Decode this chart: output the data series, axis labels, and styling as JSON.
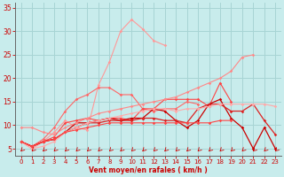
{
  "xlabel": "Vent moyen/en rafales ( km/h )",
  "x": [
    0,
    1,
    2,
    3,
    4,
    5,
    6,
    7,
    8,
    9,
    10,
    11,
    12,
    13,
    14,
    15,
    16,
    17,
    18,
    19,
    20,
    21,
    22,
    23
  ],
  "series": [
    {
      "color": "#ff9999",
      "lw": 0.8,
      "values": [
        6.5,
        5.0,
        6.5,
        8.5,
        11.0,
        9.5,
        9.0,
        18.5,
        23.5,
        30.0,
        32.5,
        30.5,
        28.0,
        27.0,
        null,
        null,
        null,
        null,
        null,
        null,
        null,
        null,
        null,
        null
      ]
    },
    {
      "color": "#ff6666",
      "lw": 0.8,
      "values": [
        6.5,
        5.5,
        7.0,
        9.5,
        13.0,
        15.5,
        16.5,
        18.0,
        18.0,
        16.5,
        16.5,
        13.5,
        13.0,
        13.5,
        13.5,
        15.0,
        14.5,
        null,
        null,
        null,
        null,
        null,
        null,
        null
      ]
    },
    {
      "color": "#ff4444",
      "lw": 0.8,
      "values": [
        6.5,
        5.5,
        6.5,
        7.5,
        10.5,
        11.0,
        11.5,
        11.0,
        11.5,
        11.5,
        11.0,
        13.5,
        13.5,
        15.5,
        15.5,
        15.5,
        15.5,
        14.0,
        19.0,
        15.0,
        null,
        null,
        null,
        null
      ]
    },
    {
      "color": "#cc0000",
      "lw": 0.9,
      "values": [
        6.5,
        5.5,
        6.5,
        7.0,
        8.5,
        10.5,
        10.5,
        11.0,
        11.5,
        11.0,
        11.5,
        11.5,
        13.5,
        13.0,
        11.0,
        9.5,
        11.0,
        14.5,
        15.5,
        11.5,
        9.5,
        5.0,
        9.5,
        5.0
      ]
    },
    {
      "color": "#dd2222",
      "lw": 0.9,
      "values": [
        6.5,
        5.5,
        6.5,
        7.0,
        8.5,
        9.5,
        10.5,
        10.5,
        11.0,
        11.0,
        11.0,
        11.5,
        11.5,
        11.0,
        11.0,
        10.5,
        13.5,
        14.5,
        14.5,
        13.0,
        13.0,
        14.5,
        11.0,
        8.0
      ]
    },
    {
      "color": "#ff8888",
      "lw": 0.8,
      "values": [
        9.5,
        9.5,
        8.5,
        8.0,
        9.5,
        10.5,
        11.5,
        12.5,
        13.0,
        13.5,
        14.0,
        14.5,
        15.0,
        15.5,
        16.0,
        17.0,
        18.0,
        19.0,
        20.0,
        21.5,
        24.5,
        25.0,
        null,
        null
      ]
    },
    {
      "color": "#ffaaaa",
      "lw": 0.8,
      "values": [
        6.5,
        5.0,
        5.5,
        6.5,
        8.5,
        9.5,
        10.5,
        11.0,
        11.5,
        12.0,
        12.5,
        13.0,
        13.5,
        13.5,
        13.0,
        13.5,
        13.5,
        14.0,
        14.5,
        14.5,
        14.5,
        14.5,
        14.5,
        14.0
      ]
    },
    {
      "color": "#ff4444",
      "lw": 0.8,
      "values": [
        6.5,
        5.5,
        6.5,
        7.0,
        8.5,
        9.0,
        9.5,
        10.0,
        10.5,
        10.5,
        10.5,
        10.5,
        10.5,
        10.5,
        10.5,
        10.5,
        10.5,
        10.5,
        11.0,
        11.0,
        null,
        null,
        null,
        null
      ]
    }
  ],
  "ylim": [
    3.5,
    36
  ],
  "yticks": [
    5,
    10,
    15,
    20,
    25,
    30,
    35
  ],
  "xlim": [
    -0.5,
    23.5
  ],
  "xticks": [
    0,
    1,
    2,
    3,
    4,
    5,
    6,
    7,
    8,
    9,
    10,
    11,
    12,
    13,
    14,
    15,
    16,
    17,
    18,
    19,
    20,
    21,
    22,
    23
  ],
  "bg_color": "#c8ecec",
  "grid_color": "#a8d4d4",
  "axes_color": "#888888",
  "label_color": "#cc0000",
  "tick_color": "#cc0000",
  "arrow_color": "#cc0000",
  "marker": "D",
  "markersize": 1.8
}
